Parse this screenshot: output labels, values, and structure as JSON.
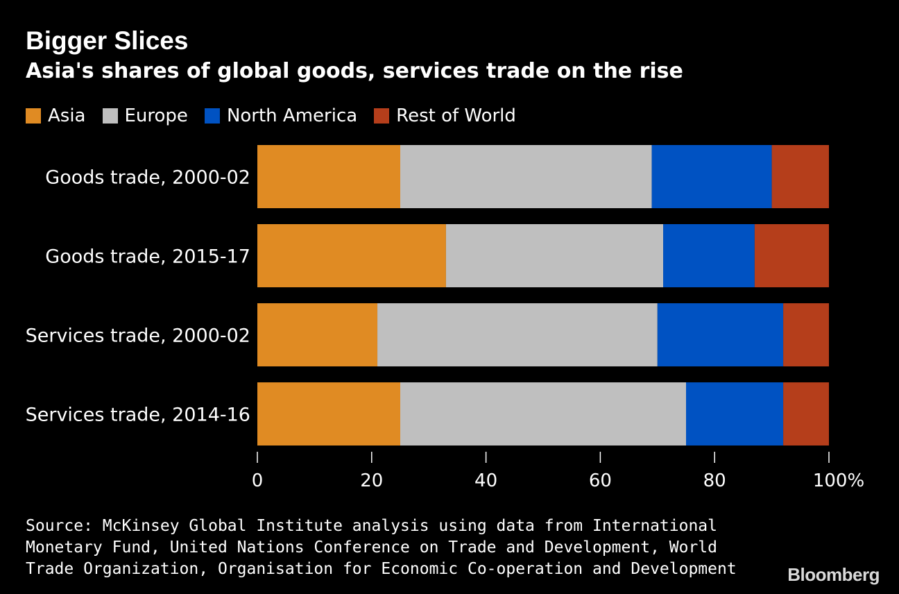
{
  "title": "Bigger Slices",
  "subtitle": "Asia's shares of global goods, services trade on the rise",
  "legend": [
    {
      "label": "Asia",
      "color": "#e08b23"
    },
    {
      "label": "Europe",
      "color": "#bfbfbf"
    },
    {
      "label": "North America",
      "color": "#0052c2"
    },
    {
      "label": "Rest of World",
      "color": "#b53e1b"
    }
  ],
  "source": "Source: McKinsey Global Institute analysis using data from International Monetary Fund, United Nations Conference on Trade and Development, World Trade Organization, Organisation for Economic Co-operation and Development",
  "brand": "Bloomberg",
  "chart_data": {
    "type": "bar",
    "orientation": "horizontal",
    "stacked": true,
    "title": "Bigger Slices",
    "subtitle": "Asia's shares of global goods, services trade on the rise",
    "categories": [
      "Goods trade, 2000-02",
      "Goods trade, 2015-17",
      "Services trade, 2000-02",
      "Services trade, 2014-16"
    ],
    "series": [
      {
        "name": "Asia",
        "color": "#e08b23",
        "values": [
          25,
          33,
          21,
          25
        ]
      },
      {
        "name": "Europe",
        "color": "#bfbfbf",
        "values": [
          44,
          38,
          49,
          50
        ]
      },
      {
        "name": "North America",
        "color": "#0052c2",
        "values": [
          21,
          16,
          22,
          17
        ]
      },
      {
        "name": "Rest of World",
        "color": "#b53e1b",
        "values": [
          10,
          13,
          8,
          8
        ]
      }
    ],
    "xlim": [
      0,
      100
    ],
    "xticks": [
      0,
      20,
      40,
      60,
      80,
      100
    ],
    "xtick_labels": [
      "0",
      "20",
      "40",
      "60",
      "80",
      "100%"
    ],
    "xlabel": "",
    "ylabel": "",
    "legend_position": "top-left"
  }
}
